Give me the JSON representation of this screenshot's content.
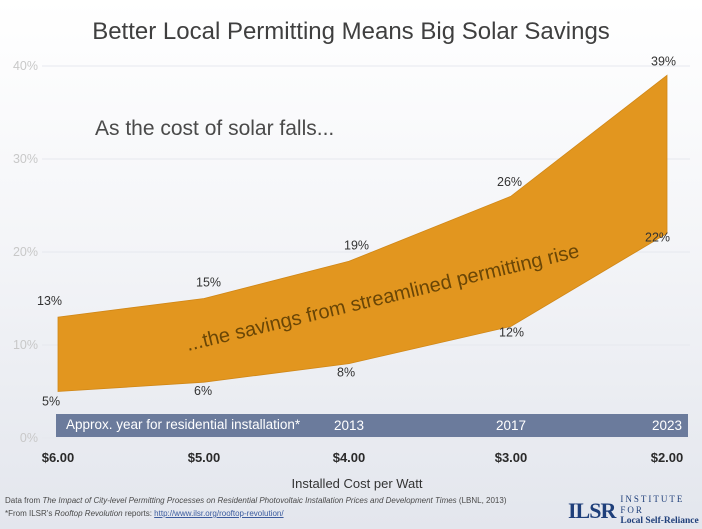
{
  "chart_data": {
    "type": "area",
    "title": "Better Local Permitting Means Big Solar Savings",
    "xlabel": "Installed Cost per Watt",
    "ylabel": "",
    "categories": [
      "$6.00",
      "$5.00",
      "$4.00",
      "$3.00",
      "$2.00"
    ],
    "x": [
      6.0,
      5.0,
      4.0,
      3.0,
      2.0
    ],
    "ylim": [
      0,
      40
    ],
    "yticks": [
      "0%",
      "10%",
      "20%",
      "30%",
      "40%"
    ],
    "ytick_values": [
      0,
      10,
      20,
      30,
      40
    ],
    "series": [
      {
        "name": "upper",
        "values": [
          13,
          15,
          19,
          26,
          39
        ],
        "labels": [
          "13%",
          "15%",
          "19%",
          "26%",
          "39%"
        ]
      },
      {
        "name": "lower",
        "values": [
          5,
          6,
          8,
          12,
          22
        ],
        "labels": [
          "5%",
          "6%",
          "8%",
          "12%",
          "22%"
        ]
      }
    ],
    "fill_color": "#E2961F",
    "annotations": {
      "cost": "As the cost of solar falls...",
      "savings": "...the savings from streamlined permitting rise"
    },
    "year_bar": {
      "label": "Approx. year for residential installation*",
      "years": [
        "",
        "",
        "2013",
        "2017",
        "2023"
      ],
      "color": "#6b7b9c"
    }
  },
  "footer": {
    "source_prefix": "Data from ",
    "source_title": "The Impact of City-level Permitting Processes on Residential Photovoltaic Installation Prices and Development Times",
    "source_suffix": " (LBNL, 2013)",
    "note_prefix": "*From ILSR's ",
    "note_title": "Rooftop Revolution",
    "note_middle": " reports: ",
    "note_link": "http://www.ilsr.org/rooftop-revolution/"
  },
  "logo": {
    "mark": "ILSR",
    "line1": "INSTITUTE FOR",
    "line2": "Local Self-Reliance"
  }
}
